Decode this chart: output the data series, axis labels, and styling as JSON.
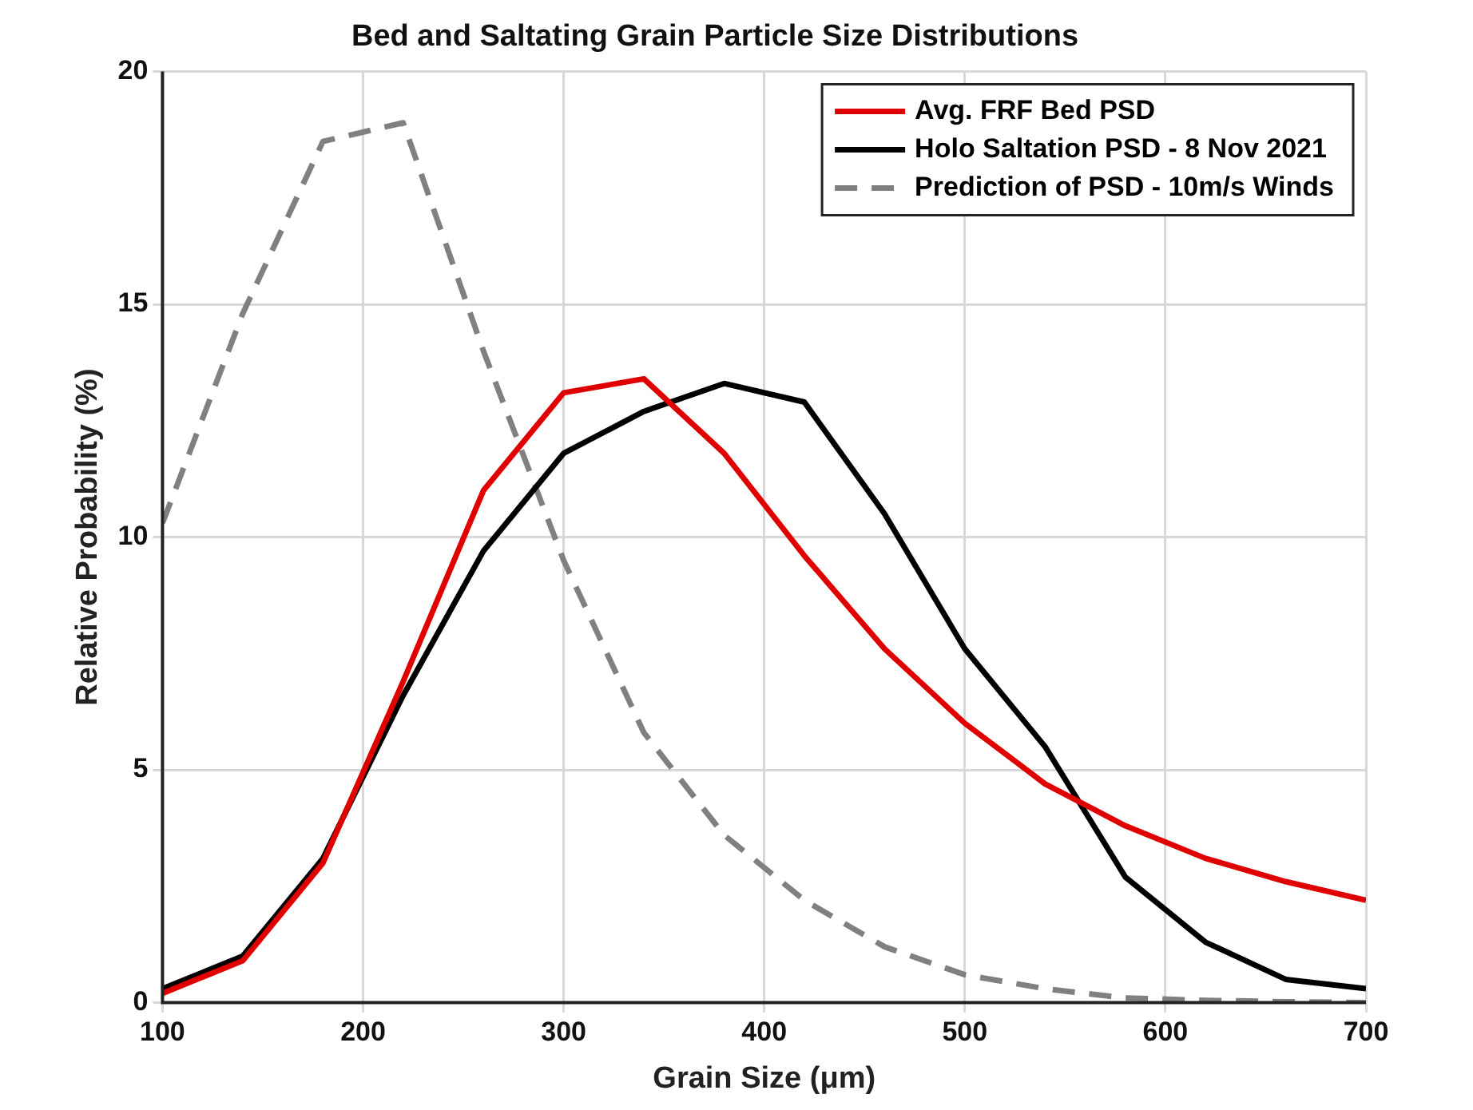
{
  "chart_data": {
    "type": "line",
    "title": "Bed and Saltating Grain Particle Size Distributions",
    "xlabel": "Grain Size (μm)",
    "ylabel": "Relative Probability (%)",
    "x": [
      100,
      140,
      180,
      220,
      260,
      300,
      340,
      380,
      420,
      460,
      500,
      540,
      580,
      620,
      660,
      700
    ],
    "series": [
      {
        "name": "Avg. FRF Bed PSD",
        "color": "#e00000",
        "line_style": "solid",
        "values": [
          0.2,
          0.9,
          3.0,
          6.9,
          11.0,
          13.1,
          13.4,
          11.8,
          9.6,
          7.6,
          6.0,
          4.7,
          3.8,
          3.1,
          2.6,
          2.2
        ]
      },
      {
        "name": "Holo Saltation PSD - 8 Nov 2021",
        "color": "#000000",
        "line_style": "solid",
        "values": [
          0.3,
          1.0,
          3.1,
          6.6,
          9.7,
          11.8,
          12.7,
          13.3,
          12.9,
          10.5,
          7.6,
          5.5,
          2.7,
          1.3,
          0.5,
          0.3
        ]
      },
      {
        "name": "Prediction of PSD - 10m/s Winds",
        "color": "#808080",
        "line_style": "dashed",
        "values": [
          10.3,
          14.8,
          18.5,
          18.9,
          14.0,
          9.5,
          5.8,
          3.6,
          2.2,
          1.2,
          0.6,
          0.3,
          0.1,
          0.05,
          0.02,
          0.0
        ]
      }
    ],
    "xlim": [
      100,
      700
    ],
    "xticks": [
      100,
      200,
      300,
      400,
      500,
      600,
      700
    ],
    "ylim": [
      0,
      20
    ],
    "yticks": [
      0,
      5,
      10,
      15,
      20
    ],
    "grid": true,
    "legend": "top right",
    "marker": "none"
  }
}
